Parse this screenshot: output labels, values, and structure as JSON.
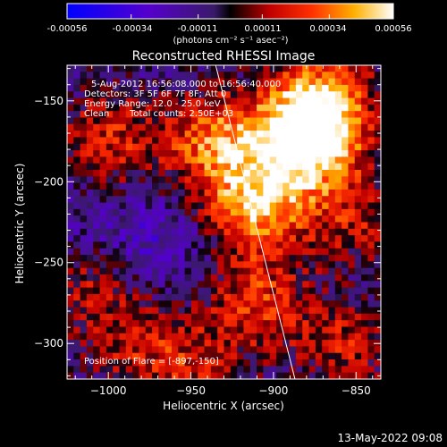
{
  "colorbar": {
    "ticks": [
      "-0.00056",
      "-0.00034",
      "-0.00011",
      "0.00011",
      "0.00034",
      "0.00056"
    ],
    "tick_values": [
      -0.00056,
      -0.00034,
      -0.00011,
      0.00011,
      0.00034,
      0.00056
    ],
    "range": [
      -0.00056,
      0.00056
    ],
    "unit_text": "(photons cm⁻² s⁻¹ asec⁻²)",
    "colormap": "blue-purple-red-orange-yellow-white"
  },
  "plot": {
    "title": "Reconstructed RHESSI Image",
    "annotations": {
      "time_range": "5-Aug-2012 16:56:08.000 to 16:56:40.000",
      "detectors": "Detectors: 3F 5F 6F 7F 8F; Att 0",
      "energy": "Energy Range: 12.0 - 25.0 keV",
      "algorithm": "Clean",
      "counts": "Total counts: 2.50E+03",
      "flare_position": "Position of Flare = [-897,-150]"
    }
  },
  "footer": {
    "timestamp": "13-May-2022 09:08"
  },
  "chart_data": {
    "type": "heatmap",
    "title": "Reconstructed RHESSI Image",
    "xlabel": "Heliocentric X (arcsec)",
    "ylabel": "Heliocentric Y (arcsec)",
    "xlim": [
      -1025,
      -835
    ],
    "ylim": [
      -322,
      -128
    ],
    "x_ticks": [
      -1000,
      -950,
      -900,
      -850
    ],
    "y_ticks": [
      -150,
      -200,
      -250,
      -300
    ],
    "x_tick_labels": [
      "−1000",
      "−950",
      "−900",
      "−850"
    ],
    "y_tick_labels": [
      "−150",
      "−200",
      "−250",
      "−300"
    ],
    "value_range": [
      -0.00056,
      0.00056
    ],
    "limb_line": {
      "x": [
        -935,
        -887
      ],
      "y": [
        -128,
        -322
      ]
    },
    "bright_regions": [
      {
        "x": -880,
        "y": -175,
        "value": 0.00056
      },
      {
        "x": -910,
        "y": -215,
        "value": 0.0004
      },
      {
        "x": -935,
        "y": -175,
        "value": 0.00034
      },
      {
        "x": -1000,
        "y": -175,
        "value": 0.0002
      },
      {
        "x": -910,
        "y": -275,
        "value": 0.00022
      },
      {
        "x": -855,
        "y": -300,
        "value": 0.00018
      },
      {
        "x": -950,
        "y": -315,
        "value": 0.00012
      },
      {
        "x": -985,
        "y": -300,
        "value": 0.0001
      },
      {
        "x": -1015,
        "y": -265,
        "value": 0.0001
      },
      {
        "x": -850,
        "y": -225,
        "value": 0.00015
      },
      {
        "x": -870,
        "y": -150,
        "value": 0.00034
      }
    ],
    "dark_regions": [
      {
        "x": -965,
        "y": -240,
        "value": -0.00025
      },
      {
        "x": -1010,
        "y": -225,
        "value": -0.0002
      },
      {
        "x": -860,
        "y": -330,
        "value": -0.00015
      },
      {
        "x": -1005,
        "y": -150,
        "value": -0.00012
      },
      {
        "x": -845,
        "y": -265,
        "value": -0.00018
      }
    ],
    "grid": false,
    "legend": "top colorbar"
  }
}
